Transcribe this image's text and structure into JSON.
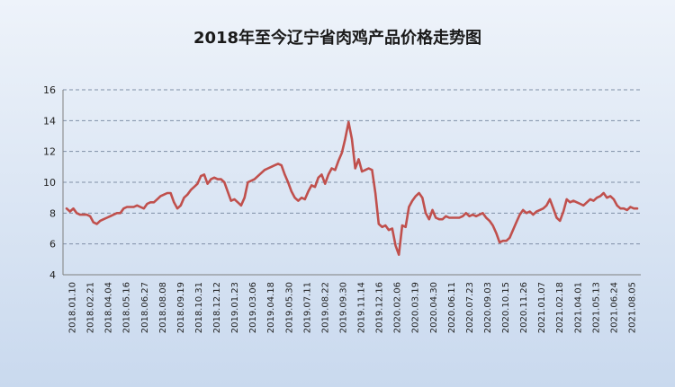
{
  "chart_data": {
    "type": "line",
    "title": "2018年至今辽宁省肉鸡产品价格走势图",
    "xlabel": "",
    "ylabel": "",
    "ylim": [
      4,
      16
    ],
    "yticks": [
      "4",
      "6",
      "8",
      "10",
      "12",
      "14",
      "16"
    ],
    "grid": "horizontal dashed",
    "legend": "none",
    "line_color": "#c0504d",
    "x_tick_labels": [
      "2018.01.10",
      "2018.02.21",
      "2018.04.04",
      "2018.05.16",
      "2018.06.27",
      "2018.08.08",
      "2018.09.19",
      "2018.10.31",
      "2018.12.12",
      "2019.01.23",
      "2019.03.06",
      "2019.04.18",
      "2019.05.30",
      "2019.07.11",
      "2019.08.22",
      "2019.09.30",
      "2019.11.14",
      "2019.12.16",
      "2020.02.06",
      "2020.03.19",
      "2020.04.30",
      "2020.06.11",
      "2020.07.23",
      "2020.09.03",
      "2020.10.15",
      "2020.11.26",
      "2021.01.07",
      "2021.02.18",
      "2021.04.01",
      "2021.05.13",
      "2021.06.24",
      "2021.08.05"
    ],
    "series": [
      {
        "values": [
          8.3,
          8.1,
          8.3,
          8.0,
          7.9,
          7.9,
          7.9,
          7.8,
          7.4,
          7.3,
          7.5,
          7.6,
          7.7,
          7.8,
          7.9,
          8.0,
          8.0,
          8.3,
          8.4,
          8.4,
          8.4,
          8.5,
          8.4,
          8.3,
          8.6,
          8.7,
          8.7,
          8.9,
          9.1,
          9.2,
          9.3,
          9.3,
          8.7,
          8.3,
          8.5,
          9.0,
          9.2,
          9.5,
          9.7,
          9.9,
          10.4,
          10.5,
          9.9,
          10.2,
          10.3,
          10.2,
          10.2,
          10.0,
          9.4,
          8.8,
          8.9,
          8.7,
          8.5,
          9.0,
          10.0,
          10.1,
          10.2,
          10.4,
          10.6,
          10.8,
          10.9,
          11.0,
          11.1,
          11.2,
          11.1,
          10.5,
          10.0,
          9.4,
          9.0,
          8.8,
          9.0,
          8.9,
          9.4,
          9.8,
          9.7,
          10.3,
          10.5,
          9.9,
          10.5,
          10.9,
          10.8,
          11.4,
          11.9,
          12.8,
          13.9,
          12.8,
          10.9,
          11.5,
          10.7,
          10.8,
          10.9,
          10.8,
          9.3,
          7.3,
          7.1,
          7.2,
          6.9,
          7.0,
          5.9,
          5.3,
          7.2,
          7.1,
          8.4,
          8.8,
          9.1,
          9.3,
          9.0,
          8.0,
          7.6,
          8.2,
          7.7,
          7.6,
          7.6,
          7.8,
          7.7,
          7.7,
          7.7,
          7.7,
          7.8,
          8.0,
          7.8,
          7.9,
          7.8,
          7.9,
          8.0,
          7.7,
          7.5,
          7.2,
          6.7,
          6.1,
          6.2,
          6.2,
          6.4,
          6.9,
          7.4,
          7.9,
          8.2,
          8.0,
          8.1,
          7.9,
          8.1,
          8.2,
          8.3,
          8.5,
          8.9,
          8.3,
          7.7,
          7.5,
          8.1,
          8.9,
          8.7,
          8.8,
          8.7,
          8.6,
          8.5,
          8.7,
          8.9,
          8.8,
          9.0,
          9.1,
          9.3,
          9.0,
          9.1,
          8.9,
          8.5,
          8.3,
          8.3,
          8.2,
          8.4,
          8.3,
          8.3
        ]
      }
    ]
  }
}
